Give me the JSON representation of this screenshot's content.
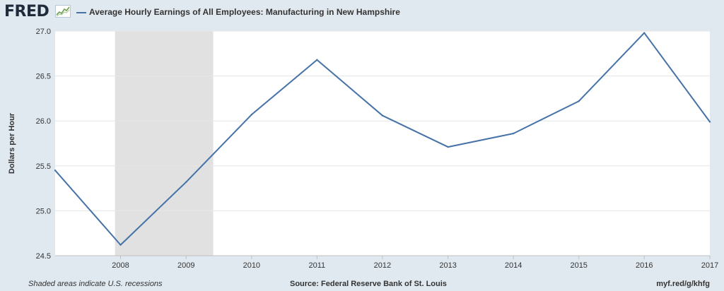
{
  "header": {
    "logo_text": "FRED",
    "logo_icon": "fred-chart-icon",
    "series_label": "Average Hourly Earnings of All Employees: Manufacturing in New Hampshire"
  },
  "footer": {
    "note": "Shaded areas indicate U.S. recessions",
    "source": "Source: Federal Reserve Bank of St. Louis",
    "link": "myf.red/g/khfg"
  },
  "colors": {
    "line": "#4572a7",
    "recession": "#e1e1e1",
    "plot_bg": "#ffffff",
    "page_bg": "#e1e9f0",
    "grid": "#e6e6e6"
  },
  "chart_data": {
    "type": "line",
    "title": "",
    "ylabel": "Dollars per Hour",
    "xlabel": "",
    "x": [
      "2007-01-01",
      "2008-01-01",
      "2009-01-01",
      "2010-01-01",
      "2011-01-01",
      "2012-01-01",
      "2013-01-01",
      "2014-01-01",
      "2015-01-01",
      "2016-01-01",
      "2017-01-01"
    ],
    "series": [
      {
        "name": "Average Hourly Earnings of All Employees: Manufacturing in New Hampshire",
        "values": [
          25.45,
          24.62,
          25.32,
          26.07,
          26.68,
          26.06,
          25.71,
          25.86,
          26.22,
          26.98,
          25.99
        ]
      }
    ],
    "xlim": [
      "2007-01-01",
      "2017-01-01"
    ],
    "ylim": [
      24.5,
      27.0
    ],
    "yticks": [
      24.5,
      25.0,
      25.5,
      26.0,
      26.5,
      27.0
    ],
    "ytick_labels": [
      "24.5",
      "25.0",
      "25.5",
      "26.0",
      "26.5",
      "27.0"
    ],
    "xticks": [
      "2008-01-01",
      "2009-01-01",
      "2010-01-01",
      "2011-01-01",
      "2012-01-01",
      "2013-01-01",
      "2014-01-01",
      "2015-01-01",
      "2016-01-01",
      "2017-01-01"
    ],
    "xtick_labels": [
      "2008",
      "2009",
      "2010",
      "2011",
      "2012",
      "2013",
      "2014",
      "2015",
      "2016",
      "2017"
    ],
    "recessions": [
      {
        "start": "2007-12-01",
        "end": "2009-06-01"
      }
    ],
    "grid": true,
    "legend": "top-left"
  }
}
